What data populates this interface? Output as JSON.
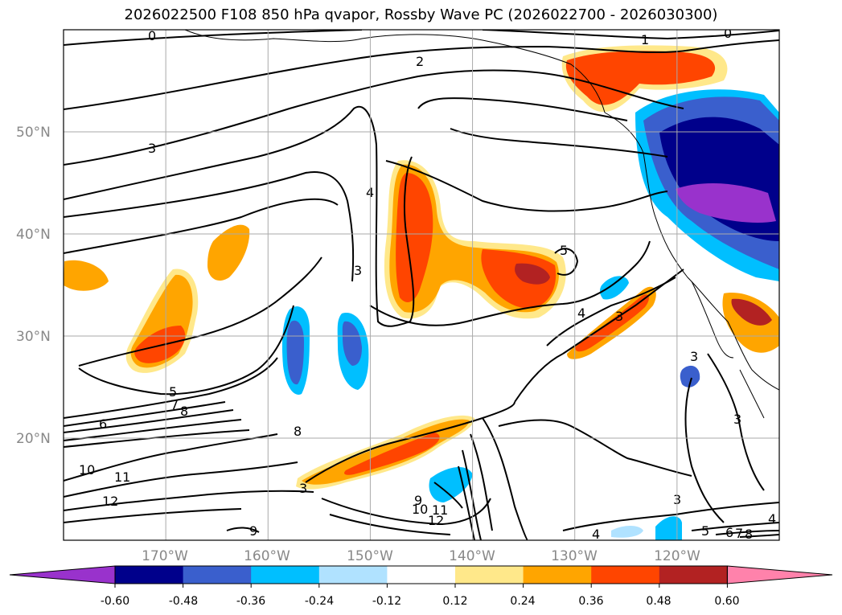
{
  "title": "2026022500 F108 850 hPa qvapor, Rossby Wave PC (2026022700 - 2026030300)",
  "map": {
    "lon_range": [
      -180,
      -110
    ],
    "lat_range": [
      10,
      60
    ],
    "lat_ticks": [
      {
        "value": 50,
        "label": "50°N"
      },
      {
        "value": 40,
        "label": "40°N"
      },
      {
        "value": 30,
        "label": "30°N"
      },
      {
        "value": 20,
        "label": "20°N"
      }
    ],
    "lon_ticks": [
      {
        "value": -170,
        "label": "170°W"
      },
      {
        "value": -160,
        "label": "160°W"
      },
      {
        "value": -150,
        "label": "150°W"
      },
      {
        "value": -140,
        "label": "140°W"
      },
      {
        "value": -130,
        "label": "130°W"
      },
      {
        "value": -120,
        "label": "120°W"
      }
    ],
    "gridlines": true
  },
  "contour_labels": [
    "0",
    "0",
    "1",
    "2",
    "3",
    "4",
    "3",
    "5",
    "4",
    "3",
    "5",
    "6",
    "7",
    "8",
    "10",
    "11",
    "12",
    "8",
    "9",
    "10",
    "11",
    "12",
    "9",
    "3",
    "3",
    "4",
    "5",
    "6",
    "7",
    "8",
    "4",
    "3",
    "3"
  ],
  "colorbar": {
    "ticks": [
      "-0.60",
      "-0.48",
      "-0.36",
      "-0.24",
      "-0.12",
      "0.12",
      "0.24",
      "0.36",
      "0.48",
      "0.60"
    ],
    "colors": [
      "#9932cc",
      "#00008b",
      "#3a5fcd",
      "#00bfff",
      "#b0e2ff",
      "#ffffff",
      "#ffe88a",
      "#ffa500",
      "#ff4500",
      "#b22222",
      "#ff82ab"
    ],
    "extend": "both"
  }
}
